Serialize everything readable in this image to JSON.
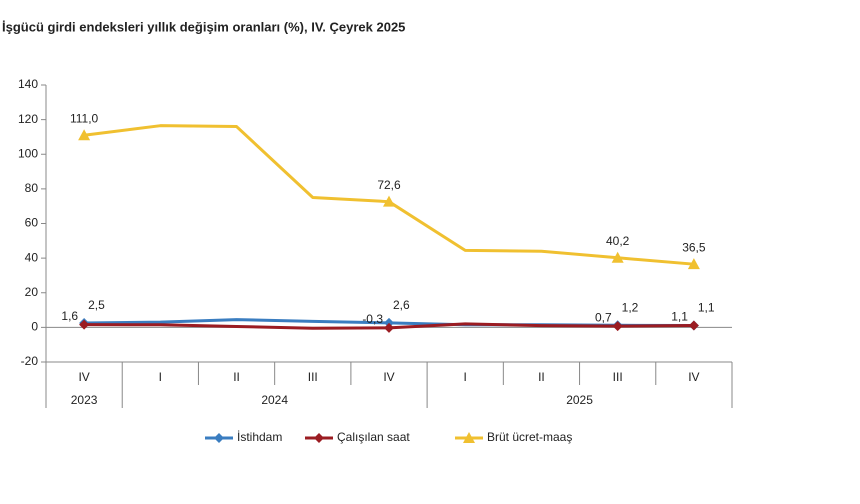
{
  "chart_data": {
    "type": "line",
    "title": "İşgücü girdi endeksleri yıllık değişim oranları (%), IV. Çeyrek 2025",
    "categories": [
      "IV",
      "I",
      "II",
      "III",
      "IV",
      "I",
      "II",
      "III",
      "IV"
    ],
    "groups": [
      {
        "label": "2023",
        "span": 1
      },
      {
        "label": "2024",
        "span": 4
      },
      {
        "label": "2025",
        "span": 4
      }
    ],
    "ylim": [
      -20,
      140
    ],
    "yticks": [
      -20,
      0,
      20,
      40,
      60,
      80,
      100,
      120,
      140
    ],
    "series": [
      {
        "name": "İstihdam",
        "color": "#3a7dc0",
        "marker": "diamond",
        "values": [
          2.5,
          3.0,
          4.5,
          3.5,
          2.6,
          1.5,
          1.5,
          1.2,
          1.1
        ],
        "value_labels": [
          "2,5",
          null,
          null,
          null,
          "2,6",
          null,
          null,
          "1,2",
          "1,1"
        ]
      },
      {
        "name": "Çalışılan saat",
        "color": "#9b1c22",
        "marker": "diamond",
        "values": [
          1.6,
          1.5,
          0.5,
          -0.5,
          -0.3,
          2.0,
          1.0,
          0.7,
          1.1
        ],
        "value_labels": [
          "1,6",
          null,
          null,
          null,
          "-0,3",
          null,
          null,
          "0,7",
          "1,1"
        ]
      },
      {
        "name": "Brüt ücret-maaş",
        "color": "#f0c030",
        "marker": "triangle",
        "values": [
          111.0,
          116.5,
          116.0,
          75.0,
          72.6,
          44.5,
          44.0,
          40.2,
          36.5
        ],
        "value_labels": [
          "111,0",
          null,
          null,
          null,
          "72,6",
          null,
          null,
          "40,2",
          "36,5"
        ]
      }
    ]
  }
}
